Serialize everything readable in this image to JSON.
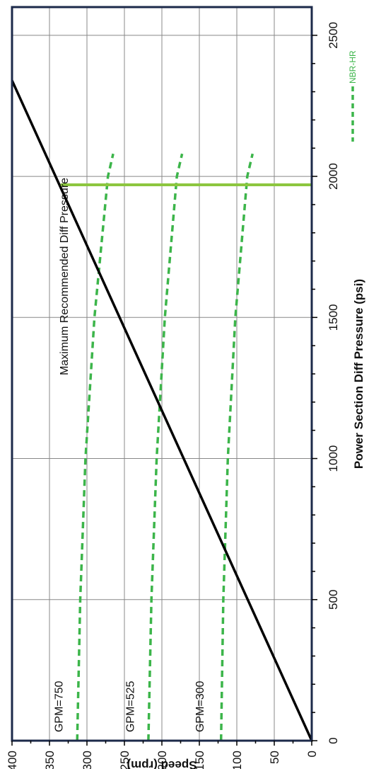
{
  "chart_data": {
    "type": "line",
    "orientation": "rotated-90-clockwise",
    "xlabel": "Power Section Diff Pressure (psi)",
    "ylabel": "Speed (rpm)",
    "xlim": [
      0,
      2600
    ],
    "ylim": [
      0,
      400
    ],
    "x_ticks": [
      "0",
      "500",
      "1000",
      "1500",
      "2000",
      "2500"
    ],
    "y_ticks": [
      "0",
      "50",
      "100",
      "150",
      "200",
      "250",
      "300",
      "350",
      "400"
    ],
    "grid": true,
    "legend": {
      "position": "right",
      "entries": [
        "NBR-HR"
      ]
    },
    "series": [
      {
        "label": "GPM=750",
        "style": "dashed",
        "color": "#3cb54a",
        "x": [
          0,
          500,
          1000,
          1500,
          2000,
          2080
        ],
        "y": [
          313,
          309,
          302,
          290,
          272,
          265
        ]
      },
      {
        "label": "GPM=525",
        "style": "dashed",
        "color": "#3cb54a",
        "x": [
          0,
          500,
          1000,
          1500,
          2000,
          2080
        ],
        "y": [
          218,
          214,
          207,
          196,
          180,
          173
        ]
      },
      {
        "label": "GPM=300",
        "style": "dashed",
        "color": "#3cb54a",
        "x": [
          0,
          500,
          1000,
          1500,
          2000,
          2080
        ],
        "y": [
          121,
          118,
          112,
          102,
          86,
          79
        ]
      },
      {
        "label": "",
        "style": "solid",
        "color": "#000000",
        "x": [
          0,
          2340
        ],
        "y": [
          0,
          400
        ]
      }
    ],
    "annotations": [
      {
        "text": "Maximum Recommended Diff Pressure",
        "x": 1970,
        "color": "#8cc63f"
      }
    ],
    "colors": {
      "frame": "#1c2a4a",
      "grid": "#888888",
      "dashed": "#3cb54a",
      "limit": "#8cc63f",
      "legend_text": "#3cb54a"
    }
  }
}
